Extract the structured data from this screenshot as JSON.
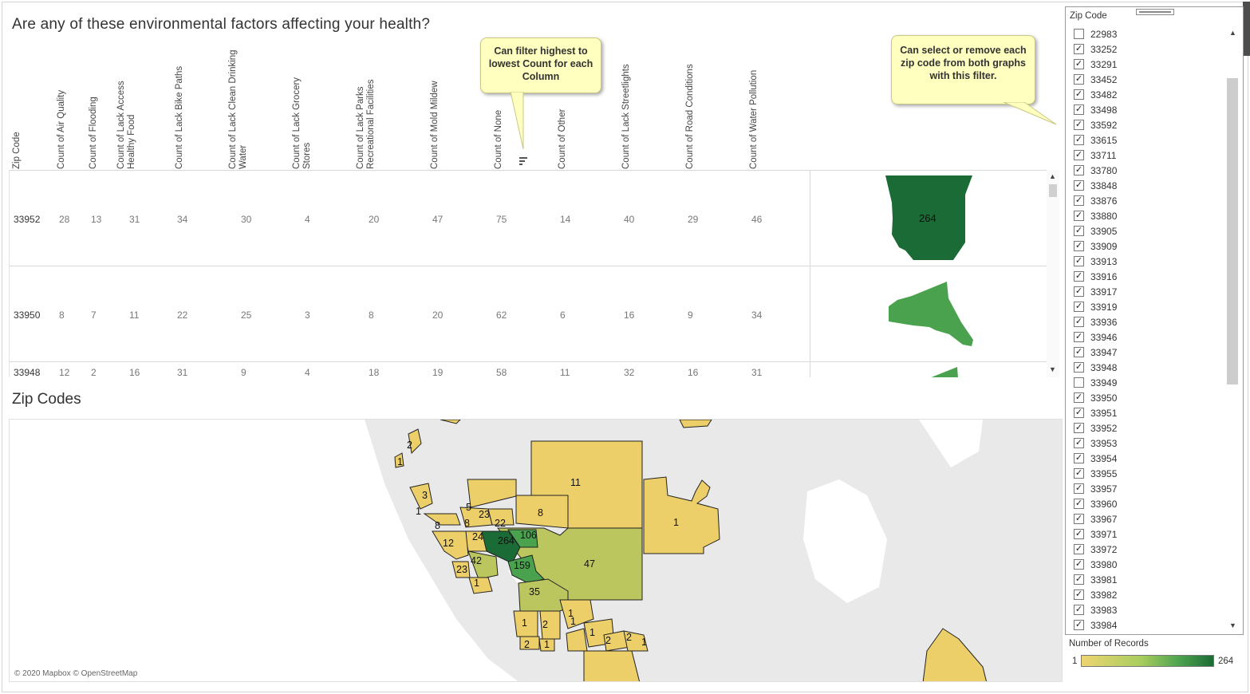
{
  "title": "Are any of these environmental factors affecting your health?",
  "map_title": "Zip Codes",
  "columns": [
    "Zip Code",
    "Count of Air Quality",
    "Count of Flooding",
    "Count of Lack Access Healthy Food",
    "Count of Lack Bike Paths",
    "Count of Lack Clean Drinking Water",
    "Count of Lack Grocery Stores",
    "Count of Lack Parks Recreational Facilities",
    "Count of Mold Mildew",
    "Count of None",
    "Count of Other",
    "Count of Lack Streetlights",
    "Count of Road Conditions",
    "Count of Water Pollution"
  ],
  "rows": [
    {
      "zip": "33952",
      "values": [
        "28",
        "13",
        "31",
        "34",
        "30",
        "4",
        "20",
        "47",
        "75",
        "14",
        "40",
        "29",
        "46"
      ],
      "records": "264"
    },
    {
      "zip": "33950",
      "values": [
        "8",
        "7",
        "11",
        "22",
        "25",
        "3",
        "8",
        "20",
        "62",
        "6",
        "16",
        "9",
        "34"
      ],
      "records": "159"
    },
    {
      "zip": "33948",
      "values": [
        "12",
        "2",
        "16",
        "31",
        "9",
        "4",
        "18",
        "19",
        "58",
        "11",
        "32",
        "16",
        "31"
      ],
      "records": ""
    }
  ],
  "callouts": {
    "sort": "Can filter highest to lowest Count for each Column",
    "filter": "Can select or remove each zip code from both graphs with this filter."
  },
  "filter": {
    "title": "Zip Code",
    "items": [
      {
        "label": "22983",
        "checked": false
      },
      {
        "label": "33252",
        "checked": true
      },
      {
        "label": "33291",
        "checked": true
      },
      {
        "label": "33452",
        "checked": true
      },
      {
        "label": "33482",
        "checked": true
      },
      {
        "label": "33498",
        "checked": true
      },
      {
        "label": "33592",
        "checked": true
      },
      {
        "label": "33615",
        "checked": true
      },
      {
        "label": "33711",
        "checked": true
      },
      {
        "label": "33780",
        "checked": true
      },
      {
        "label": "33848",
        "checked": true
      },
      {
        "label": "33876",
        "checked": true
      },
      {
        "label": "33880",
        "checked": true
      },
      {
        "label": "33905",
        "checked": true
      },
      {
        "label": "33909",
        "checked": true
      },
      {
        "label": "33913",
        "checked": true
      },
      {
        "label": "33916",
        "checked": true
      },
      {
        "label": "33917",
        "checked": true
      },
      {
        "label": "33919",
        "checked": true
      },
      {
        "label": "33936",
        "checked": true
      },
      {
        "label": "33946",
        "checked": true
      },
      {
        "label": "33947",
        "checked": true
      },
      {
        "label": "33948",
        "checked": true
      },
      {
        "label": "33949",
        "checked": false
      },
      {
        "label": "33950",
        "checked": true
      },
      {
        "label": "33951",
        "checked": true
      },
      {
        "label": "33952",
        "checked": true
      },
      {
        "label": "33953",
        "checked": true
      },
      {
        "label": "33954",
        "checked": true
      },
      {
        "label": "33955",
        "checked": true
      },
      {
        "label": "33957",
        "checked": true
      },
      {
        "label": "33960",
        "checked": true
      },
      {
        "label": "33967",
        "checked": true
      },
      {
        "label": "33971",
        "checked": true
      },
      {
        "label": "33972",
        "checked": true
      },
      {
        "label": "33980",
        "checked": true
      },
      {
        "label": "33981",
        "checked": true
      },
      {
        "label": "33982",
        "checked": true
      },
      {
        "label": "33983",
        "checked": true
      },
      {
        "label": "33984",
        "checked": true
      }
    ]
  },
  "legend": {
    "title": "Number of Records",
    "min": "1",
    "max": "264"
  },
  "map_labels": [
    "2",
    "1",
    "3",
    "1",
    "8",
    "5",
    "8",
    "23",
    "22",
    "8",
    "11",
    "1",
    "106",
    "264",
    "24",
    "12",
    "42",
    "23",
    "1",
    "159",
    "47",
    "35",
    "1",
    "1",
    "2",
    "1",
    "2",
    "1",
    "1",
    "2",
    "2",
    "1"
  ],
  "credit": "© 2020 Mapbox © OpenStreetMap",
  "colors": {
    "dark_green": "#1a6b35",
    "mid_green": "#4aa14e",
    "olive": "#bcc65e",
    "yellow": "#eccf69",
    "callout": "#ffffc0"
  }
}
